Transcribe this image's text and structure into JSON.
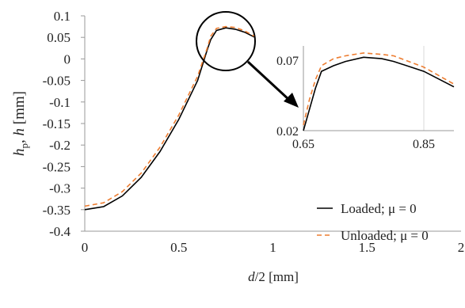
{
  "chart_data": [
    {
      "type": "line",
      "x_label_parts": [
        "d",
        "/2 [mm]"
      ],
      "y_label_parts": [
        "h",
        "p",
        ", ",
        "h",
        " [mm]"
      ],
      "xlim": [
        0,
        2
      ],
      "xticks": [
        0,
        0.5,
        1,
        1.5,
        2
      ],
      "ylim": [
        -0.4,
        0.1
      ],
      "yticks": [
        -0.4,
        -0.35,
        -0.3,
        -0.25,
        -0.2,
        -0.15,
        -0.1,
        -0.05,
        0,
        0.05,
        0.1
      ],
      "legend": "lower right",
      "series": [
        {
          "name": "Loaded; μ = 0",
          "color": "#000000",
          "dash": "solid",
          "x": [
            0,
            0.1,
            0.2,
            0.3,
            0.4,
            0.5,
            0.6,
            0.65,
            0.67,
            0.7,
            0.75,
            0.8,
            0.85,
            0.9
          ],
          "values": [
            -0.35,
            -0.343,
            -0.318,
            -0.275,
            -0.215,
            -0.14,
            -0.05,
            0.02,
            0.045,
            0.066,
            0.072,
            0.069,
            0.062,
            0.051
          ]
        },
        {
          "name": "Unloaded; μ = 0",
          "color": "#ed7d31",
          "dash": "dashed",
          "x": [
            0,
            0.1,
            0.2,
            0.3,
            0.4,
            0.5,
            0.6,
            0.65,
            0.67,
            0.7,
            0.75,
            0.8,
            0.85,
            0.9
          ],
          "values": [
            -0.342,
            -0.334,
            -0.308,
            -0.265,
            -0.205,
            -0.13,
            -0.04,
            0.024,
            0.053,
            0.071,
            0.075,
            0.073,
            0.065,
            0.053
          ]
        }
      ]
    },
    {
      "type": "line",
      "xlim": [
        0.65,
        0.9
      ],
      "xticks": [
        0.65,
        0.85
      ],
      "ylim": [
        0.02,
        0.08
      ],
      "yticks": [
        0.02,
        0.07
      ],
      "series": [
        {
          "color": "#000000",
          "dash": "solid",
          "x": [
            0.65,
            0.66,
            0.67,
            0.68,
            0.7,
            0.72,
            0.75,
            0.78,
            0.8,
            0.85,
            0.9
          ],
          "values": [
            0.02,
            0.035,
            0.05,
            0.062,
            0.066,
            0.069,
            0.072,
            0.071,
            0.069,
            0.062,
            0.051
          ]
        },
        {
          "color": "#ed7d31",
          "dash": "dashed",
          "x": [
            0.65,
            0.66,
            0.67,
            0.68,
            0.7,
            0.72,
            0.75,
            0.78,
            0.8,
            0.85,
            0.9
          ],
          "values": [
            0.024,
            0.042,
            0.056,
            0.066,
            0.071,
            0.073,
            0.075,
            0.074,
            0.073,
            0.065,
            0.053
          ]
        }
      ]
    }
  ]
}
